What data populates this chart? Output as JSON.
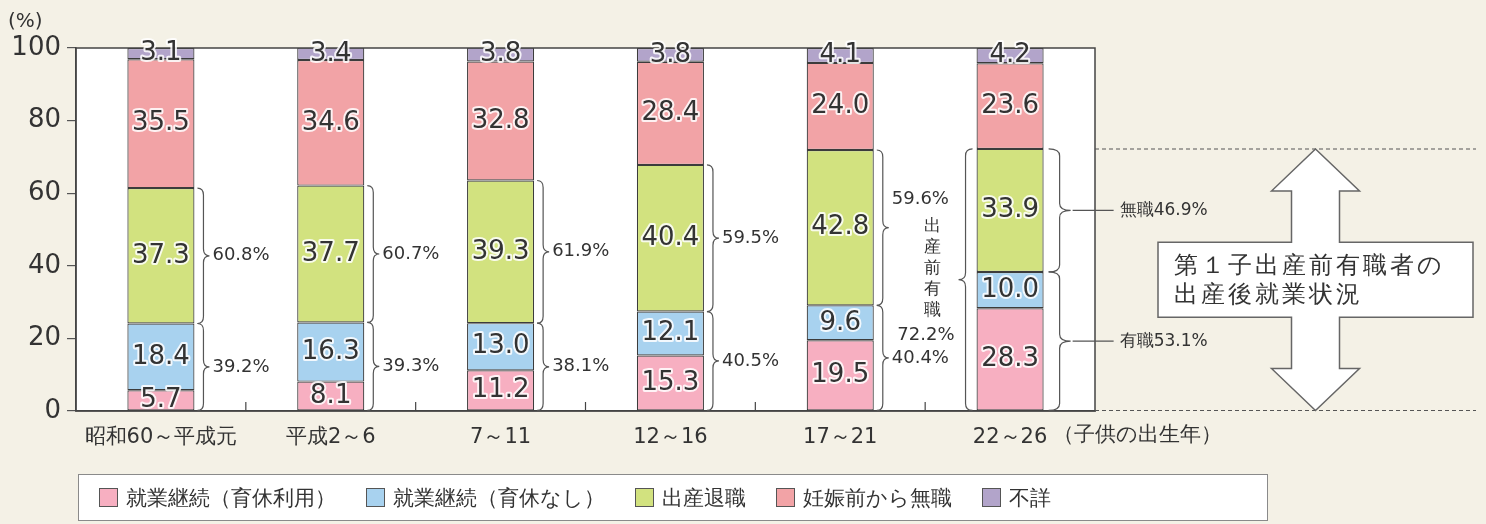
{
  "chart_data": {
    "type": "bar",
    "stacked": true,
    "categories": [
      "昭和60～平成元",
      "平成2～6",
      "7～11",
      "12～16",
      "17～21",
      "22～26"
    ],
    "xlabel": "（子供の出生年）",
    "ylabel": "(%)",
    "ylim": [
      0,
      100
    ],
    "yticks": [
      0,
      20,
      40,
      60,
      80,
      100
    ],
    "legend": "bottom",
    "series": [
      {
        "name": "就業継続（育休利用）",
        "color": "#f7afc1",
        "values": [
          5.7,
          8.1,
          11.2,
          15.3,
          19.5,
          28.3
        ],
        "value_labels": [
          "5.7",
          "8.1",
          "11.2",
          "15.3",
          "19.5",
          "28.3"
        ]
      },
      {
        "name": "就業継続（育休なし）",
        "color": "#a8d2ef",
        "values": [
          18.4,
          16.3,
          13.0,
          12.1,
          9.6,
          10.0
        ],
        "value_labels": [
          "18.4",
          "16.3",
          "13.0",
          "12.1",
          "9.6",
          "10.0"
        ]
      },
      {
        "name": "出産退職",
        "color": "#d2e27f",
        "values": [
          37.3,
          37.7,
          39.3,
          40.4,
          42.8,
          33.9
        ],
        "value_labels": [
          "37.3",
          "37.7",
          "39.3",
          "40.4",
          "42.8",
          "33.9"
        ]
      },
      {
        "name": "妊娠前から無職",
        "color": "#f2a3a6",
        "values": [
          35.5,
          34.6,
          32.8,
          28.4,
          24.0,
          23.6
        ],
        "value_labels": [
          "35.5",
          "34.6",
          "32.8",
          "28.4",
          "24.0",
          "23.6"
        ]
      },
      {
        "name": "不詳",
        "color": "#b2a4ca",
        "values": [
          3.1,
          3.4,
          3.8,
          3.8,
          4.1,
          4.2
        ],
        "value_labels": [
          "3.1",
          "3.4",
          "3.8",
          "3.8",
          "4.1",
          "4.2"
        ]
      }
    ],
    "annotations": [
      "60.8%",
      "39.2%",
      "60.7%",
      "39.3%",
      "61.9%",
      "38.1%",
      "59.5%",
      "40.5%",
      "59.6%",
      "40.4%",
      "72.2%",
      "出産前有職",
      "無職46.9%",
      "有職53.1%",
      "第１子出産前有職者の出産後就業状況"
    ]
  }
}
